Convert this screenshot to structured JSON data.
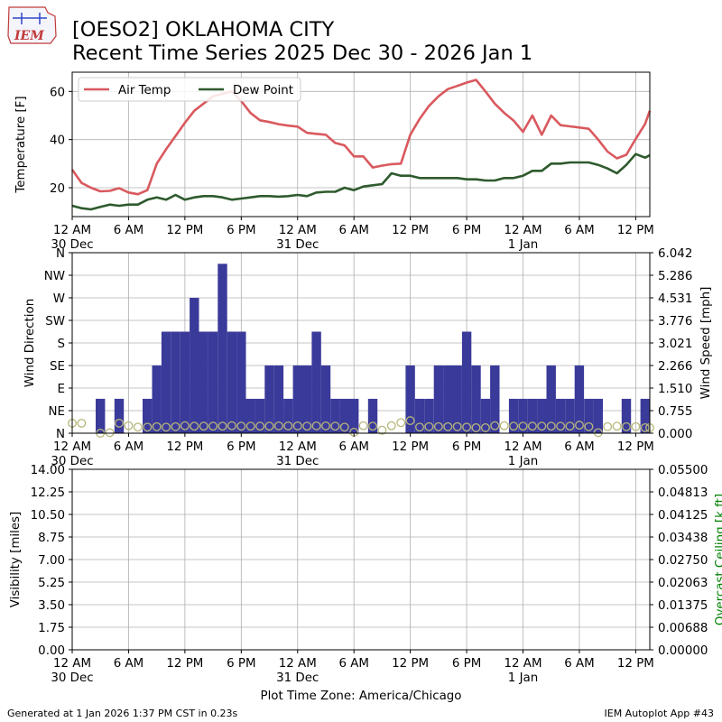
{
  "header": {
    "logo_text": "IEM",
    "title_line1": "[OESO2] OKLAHOMA CITY",
    "title_line2": "Recent Time Series 2025 Dec 30 - 2026 Jan 1"
  },
  "footer": {
    "generated": "Generated at 1 Jan 2026 1:37 PM CST in 0.23s",
    "app": "IEM Autoplot App #43",
    "timezone": "Plot Time Zone: America/Chicago"
  },
  "x_axis": {
    "hours_range": [
      0,
      61.5
    ],
    "ticks": [
      {
        "h": 0,
        "label": "12 AM",
        "date": "30 Dec"
      },
      {
        "h": 6,
        "label": "6 AM",
        "date": ""
      },
      {
        "h": 12,
        "label": "12 PM",
        "date": ""
      },
      {
        "h": 18,
        "label": "6 PM",
        "date": ""
      },
      {
        "h": 24,
        "label": "12 AM",
        "date": "31 Dec"
      },
      {
        "h": 30,
        "label": "6 AM",
        "date": ""
      },
      {
        "h": 36,
        "label": "12 PM",
        "date": ""
      },
      {
        "h": 42,
        "label": "6 PM",
        "date": ""
      },
      {
        "h": 48,
        "label": "12 AM",
        "date": "1 Jan"
      },
      {
        "h": 54,
        "label": "6 AM",
        "date": ""
      },
      {
        "h": 60,
        "label": "12 PM",
        "date": ""
      }
    ]
  },
  "colors": {
    "air_temp": "#d9595e",
    "dew_point": "#2e5a2d",
    "wind_bar": "#3a3a9a",
    "wind_dir": "#b7b77a",
    "ceiling_label": "#008000"
  },
  "chart_data": [
    {
      "type": "line",
      "title": "Temperature",
      "ylabel": "Temperature [F]",
      "ylim": [
        8,
        68
      ],
      "yticks": [
        20,
        40,
        60
      ],
      "legend": "top-left",
      "x_hours": [
        0,
        1,
        2,
        3,
        4,
        5,
        6,
        7,
        8,
        9,
        10,
        11,
        12,
        13,
        14,
        15,
        16,
        17,
        18,
        19,
        20,
        21,
        22,
        23,
        24,
        25,
        26,
        27,
        28,
        29,
        30,
        31,
        32,
        33,
        34,
        35,
        36,
        37,
        38,
        39,
        40,
        41,
        42,
        43,
        44,
        45,
        46,
        47,
        48,
        49,
        50,
        51,
        52,
        53,
        54,
        55,
        56,
        57,
        58,
        59,
        60,
        61,
        61.5
      ],
      "series": [
        {
          "name": "Air Temp",
          "values": [
            27.5,
            22,
            20,
            18.5,
            18.7,
            19.8,
            18,
            17.3,
            19,
            30,
            36,
            41.5,
            47,
            52,
            55,
            58,
            59,
            60,
            56,
            51,
            48,
            47.3,
            46.4,
            45.8,
            45.4,
            42.8,
            42.4,
            42,
            38.6,
            37.6,
            33,
            33,
            28.4,
            29.2,
            29.8,
            30,
            42,
            48.6,
            54,
            58,
            61,
            62.3,
            63.7,
            64.8,
            60,
            54.9,
            51.1,
            47.9,
            43.2,
            50,
            42,
            50,
            46,
            45.5,
            45,
            44.5,
            40,
            35,
            32.2,
            33.7,
            40.3,
            46.5,
            52
          ]
        },
        {
          "name": "Dew Point",
          "values": [
            12.5,
            11.5,
            11,
            12,
            13,
            12.5,
            13,
            13,
            15,
            16,
            15,
            17,
            15,
            16,
            16.5,
            16.5,
            16,
            15,
            15.5,
            16,
            16.5,
            16.5,
            16.3,
            16.5,
            17,
            16.5,
            18,
            18.3,
            18.3,
            20,
            19,
            20.5,
            21,
            21.5,
            26,
            25,
            25,
            24,
            24,
            24,
            24,
            24,
            23.5,
            23.5,
            23,
            23,
            24,
            24,
            25,
            27,
            27,
            30,
            30,
            30.5,
            30.5,
            30.5,
            29.5,
            28,
            26,
            29.5,
            34,
            32.5,
            33.5
          ]
        }
      ]
    },
    {
      "type": "bar",
      "title": "Wind",
      "ylabel_left": "Wind Direction",
      "ylabel_right": "Wind Speed [mph]",
      "direction_ticks": [
        "N",
        "NE",
        "E",
        "SE",
        "S",
        "SW",
        "W",
        "NW",
        "N"
      ],
      "speed_ticks": [
        "0.000",
        "0.755",
        "1.510",
        "2.266",
        "3.021",
        "3.776",
        "4.531",
        "5.286",
        "6.042"
      ],
      "speed_ylim": [
        0,
        6.042
      ],
      "series": [
        {
          "name": "Wind Speed",
          "unit": "mph",
          "x_hours": [
            0,
            1,
            2,
            3,
            4,
            5,
            6,
            7,
            8,
            9,
            10,
            11,
            12,
            13,
            14,
            15,
            16,
            17,
            18,
            19,
            20,
            21,
            22,
            23,
            24,
            25,
            26,
            27,
            28,
            29,
            30,
            31,
            32,
            33,
            34,
            35,
            36,
            37,
            38,
            39,
            40,
            41,
            42,
            43,
            44,
            45,
            46,
            47,
            48,
            49,
            50,
            51,
            52,
            53,
            54,
            55,
            56,
            57,
            58,
            59,
            60,
            61
          ],
          "values": [
            0,
            0,
            0,
            1.15,
            0,
            1.15,
            0,
            0,
            1.15,
            2.27,
            3.4,
            3.4,
            3.4,
            4.53,
            3.4,
            3.4,
            5.67,
            3.4,
            3.4,
            1.15,
            1.15,
            2.27,
            2.27,
            1.15,
            2.27,
            2.27,
            3.4,
            2.27,
            1.15,
            1.15,
            1.15,
            0,
            1.15,
            0,
            0,
            0,
            2.27,
            1.15,
            1.15,
            2.27,
            2.27,
            2.27,
            3.4,
            2.27,
            1.15,
            2.27,
            0,
            1.15,
            1.15,
            1.15,
            1.15,
            2.27,
            1.15,
            1.15,
            2.27,
            1.15,
            1.15,
            0,
            0,
            1.15,
            0,
            1.15
          ]
        },
        {
          "name": "Wind Direction",
          "unit": "deg",
          "x_hours": [
            0,
            1,
            3,
            4,
            5,
            6,
            7,
            8,
            9,
            10,
            11,
            12,
            13,
            14,
            15,
            16,
            17,
            18,
            19,
            20,
            21,
            22,
            23,
            24,
            25,
            26,
            27,
            28,
            29,
            30,
            31,
            32,
            33,
            34,
            35,
            36,
            37,
            38,
            39,
            40,
            41,
            42,
            43,
            44,
            45,
            46,
            47,
            48,
            49,
            50,
            51,
            52,
            53,
            54,
            55,
            56,
            57,
            58,
            59,
            60,
            61,
            61.5
          ],
          "values": [
            20,
            20,
            0,
            1,
            20,
            15,
            12,
            12,
            13,
            12,
            13,
            15,
            14,
            14,
            14,
            14,
            15,
            14,
            14,
            14,
            14,
            14.5,
            14.5,
            14.5,
            14,
            14.5,
            14.5,
            14,
            12,
            2,
            15,
            14,
            6,
            15,
            21,
            25,
            12,
            13,
            13,
            13,
            13,
            12,
            11,
            11,
            15,
            15,
            14,
            14,
            14,
            14,
            14,
            14,
            14,
            16,
            13,
            1,
            13,
            14,
            13,
            13,
            11,
            11
          ]
        }
      ]
    },
    {
      "type": "line",
      "title": "Visibility and Ceiling",
      "ylabel_left": "Visibility [miles]",
      "ylabel_right": "Overcast Ceiling [k ft]",
      "ylim_left": [
        0,
        14
      ],
      "ylim_right": [
        0,
        0.055
      ],
      "left_ticks": [
        "0.00",
        "1.75",
        "3.50",
        "5.25",
        "7.00",
        "8.75",
        "10.50",
        "12.25",
        "14.00"
      ],
      "right_ticks": [
        "0.00000",
        "0.00688",
        "0.01375",
        "0.02063",
        "0.02750",
        "0.03438",
        "0.04125",
        "0.04813",
        "0.05500"
      ],
      "series": []
    }
  ]
}
